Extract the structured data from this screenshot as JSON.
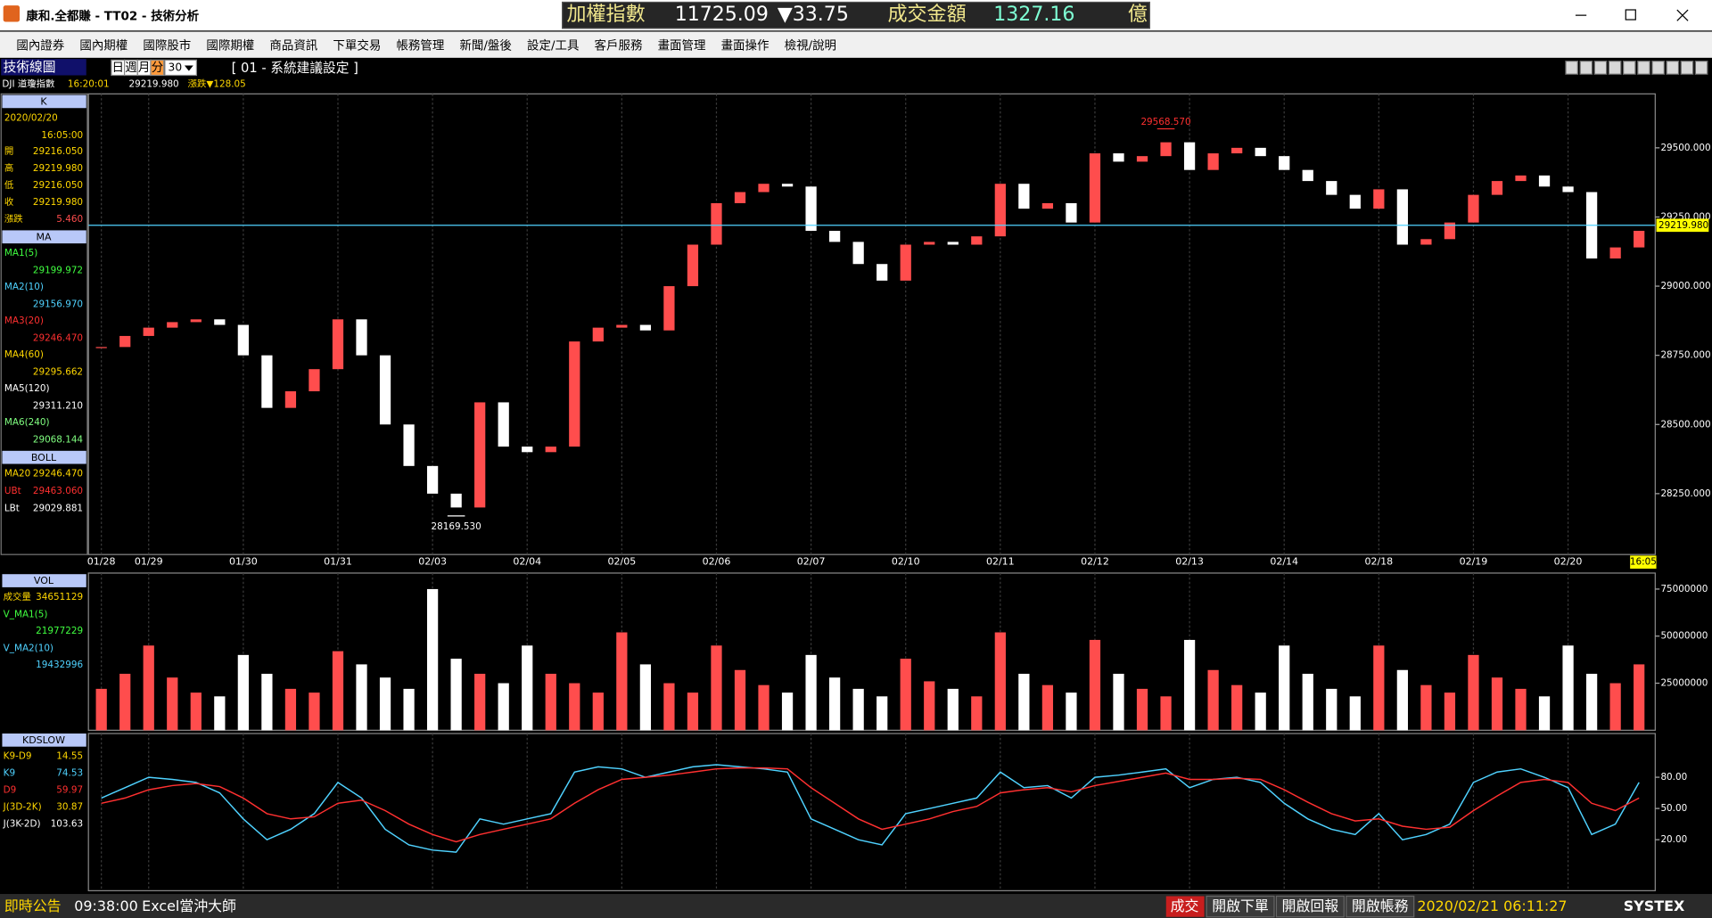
{
  "window": {
    "title": "康和.全都賺 - TT02 - 技術分析",
    "ticker": {
      "name": "加權指數",
      "value": "11725.09",
      "change": "▼33.75",
      "amount_label": "成交金額",
      "amount": "1327.16",
      "unit": "億"
    }
  },
  "menu": [
    "國內證券",
    "國內期權",
    "國際股市",
    "國際期權",
    "商品資訊",
    "下單交易",
    "帳務管理",
    "新聞/盤後",
    "設定/工具",
    "客戶服務",
    "畫面管理",
    "畫面操作",
    "檢視/說明"
  ],
  "toolbar": {
    "label": "技術線圖",
    "periods": [
      "日",
      "週",
      "月",
      "分"
    ],
    "interval": "30",
    "setting": "[ 01 - 系統建議設定 ]"
  },
  "info": {
    "symbol": "DJI 道瓊指數",
    "time": "16:20:01",
    "price": "29219.980",
    "change": "漲跌▼128.05"
  },
  "side_panel": {
    "k": {
      "header": "K",
      "date": "2020/02/20",
      "time": "16:05:00",
      "rows": [
        {
          "label": "開",
          "value": "29216.050"
        },
        {
          "label": "高",
          "value": "29219.980"
        },
        {
          "label": "低",
          "value": "29216.050"
        },
        {
          "label": "收",
          "value": "29219.980"
        },
        {
          "label": "漲跌",
          "value": "5.460"
        }
      ]
    },
    "ma": {
      "header": "MA",
      "rows": [
        {
          "label": "MA1(5)",
          "value": "29199.972"
        },
        {
          "label": "MA2(10)",
          "value": "29156.970"
        },
        {
          "label": "MA3(20)",
          "value": "29246.470"
        },
        {
          "label": "MA4(60)",
          "value": "29295.662"
        },
        {
          "label": "MA5(120)",
          "value": "29311.210"
        },
        {
          "label": "MA6(240)",
          "value": "29068.144"
        }
      ]
    },
    "boll": {
      "header": "BOLL",
      "rows": [
        {
          "label": "MA20",
          "value": "29246.470"
        },
        {
          "label": "UBt",
          "value": "29463.060"
        },
        {
          "label": "LBt",
          "value": "29029.881"
        }
      ]
    }
  },
  "chart_data": [
    {
      "type": "candlestick",
      "categories": [
        "01/28",
        null,
        "01/29",
        null,
        null,
        null,
        "01/30",
        null,
        null,
        null,
        "01/31",
        null,
        null,
        null,
        "02/03",
        null,
        null,
        null,
        "02/04",
        null,
        null,
        null,
        "02/05",
        null,
        null,
        null,
        "02/06",
        null,
        null,
        null,
        "02/07",
        null,
        null,
        null,
        "02/10",
        null,
        null,
        null,
        "02/11",
        null,
        null,
        null,
        "02/12",
        null,
        null,
        null,
        "02/13",
        null,
        null,
        null,
        "02/14",
        null,
        null,
        null,
        "02/18",
        null,
        null,
        null,
        "02/19",
        null,
        null,
        null,
        "02/20",
        null,
        null,
        null
      ],
      "close": [
        28780,
        28820,
        28850,
        28870,
        28880,
        28860,
        28750,
        28560,
        28620,
        28700,
        28880,
        28750,
        28500,
        28350,
        28250,
        28200,
        28580,
        28420,
        28400,
        28420,
        28800,
        28850,
        28860,
        28840,
        29000,
        29150,
        29300,
        29340,
        29370,
        29360,
        29200,
        29160,
        29080,
        29020,
        29150,
        29160,
        29150,
        29180,
        29370,
        29280,
        29300,
        29230,
        29480,
        29450,
        29470,
        29520,
        29420,
        29480,
        29500,
        29470,
        29420,
        29380,
        29330,
        29280,
        29350,
        29150,
        29170,
        29230,
        29330,
        29380,
        29400,
        29360,
        29340,
        29100,
        29140,
        29200
      ],
      "up_color": "#ff4d4d",
      "down_color": "#ffffff",
      "ylim": [
        28030,
        29695
      ],
      "yticks": [
        {
          "value": 28250,
          "label": "28250.000"
        },
        {
          "value": 28500,
          "label": "28500.000"
        },
        {
          "value": 28750,
          "label": "28750.000"
        },
        {
          "value": 29000,
          "label": "29000.000"
        },
        {
          "value": 29250,
          "label": "29250.000"
        },
        {
          "value": 29500,
          "label": "29500.000"
        }
      ],
      "high_label": {
        "value": 29568.57,
        "label": "29568.570"
      },
      "low_label": {
        "value": 28169.53,
        "label": "28169.530"
      },
      "last": {
        "value": 29219.98,
        "label": "29219.980"
      },
      "time_label": "16:05",
      "grid": true
    },
    {
      "type": "bar",
      "title": "VOL",
      "legend": [
        {
          "label": "成交量",
          "value": "34651129"
        },
        {
          "label": "V_MA1(5)",
          "value": "21977229"
        },
        {
          "label": "V_MA2(10)",
          "value": "19432996"
        }
      ],
      "values": [
        22000000,
        30000000,
        45000000,
        28000000,
        20000000,
        18000000,
        40000000,
        30000000,
        22000000,
        20000000,
        42000000,
        35000000,
        28000000,
        22000000,
        75000000,
        38000000,
        30000000,
        25000000,
        45000000,
        30000000,
        25000000,
        20000000,
        52000000,
        35000000,
        25000000,
        20000000,
        45000000,
        32000000,
        24000000,
        20000000,
        40000000,
        28000000,
        22000000,
        18000000,
        38000000,
        26000000,
        22000000,
        18000000,
        52000000,
        30000000,
        24000000,
        20000000,
        48000000,
        30000000,
        22000000,
        18000000,
        48000000,
        32000000,
        24000000,
        20000000,
        45000000,
        30000000,
        22000000,
        18000000,
        45000000,
        32000000,
        24000000,
        20000000,
        40000000,
        28000000,
        22000000,
        18000000,
        45000000,
        30000000,
        25000000,
        35000000
      ],
      "ylim": [
        0,
        83500000
      ],
      "yticks": [
        25000000,
        50000000,
        75000000
      ]
    },
    {
      "type": "line",
      "title": "KDSLOW",
      "legend": [
        {
          "label": "K9-D9",
          "value": "14.55"
        },
        {
          "label": "K9",
          "value": "74.53"
        },
        {
          "label": "D9",
          "value": "59.97"
        },
        {
          "label": "J(3D-2K)",
          "value": "30.87"
        },
        {
          "label": "J(3K-2D)",
          "value": "103.63"
        }
      ],
      "series": [
        {
          "color": "#4fd2ff",
          "values": [
            60,
            70,
            80,
            78,
            75,
            65,
            40,
            20,
            30,
            45,
            75,
            60,
            30,
            15,
            10,
            8,
            40,
            35,
            40,
            45,
            85,
            90,
            88,
            80,
            85,
            90,
            92,
            90,
            88,
            85,
            40,
            30,
            20,
            15,
            45,
            50,
            55,
            60,
            85,
            70,
            72,
            60,
            80,
            82,
            85,
            88,
            70,
            78,
            80,
            75,
            55,
            40,
            30,
            25,
            45,
            20,
            25,
            35,
            75,
            85,
            88,
            80,
            70,
            25,
            35,
            75
          ]
        },
        {
          "color": "#ff3030",
          "values": [
            55,
            60,
            68,
            72,
            74,
            71,
            60,
            45,
            40,
            42,
            55,
            58,
            48,
            35,
            25,
            18,
            25,
            30,
            35,
            40,
            55,
            68,
            78,
            80,
            82,
            85,
            88,
            89,
            89,
            88,
            70,
            55,
            40,
            30,
            35,
            40,
            47,
            52,
            65,
            68,
            70,
            66,
            72,
            76,
            80,
            84,
            78,
            78,
            79,
            78,
            68,
            56,
            45,
            38,
            40,
            33,
            30,
            32,
            48,
            62,
            75,
            78,
            75,
            55,
            48,
            60
          ]
        }
      ],
      "ylim": [
        -29,
        122
      ],
      "yticks": [
        {
          "value": 20,
          "label": "20.00"
        },
        {
          "value": 50,
          "label": "50.00"
        },
        {
          "value": 80,
          "label": "80.00"
        }
      ]
    }
  ],
  "status_bar": {
    "notice": "即時公告",
    "notice_time": "09:38:00",
    "notice_text": "Excel當沖大師",
    "trade": "成交",
    "buttons": [
      "開啟下單",
      "開啟回報",
      "開啟帳務"
    ],
    "clock": "2020/02/21 06:11:27",
    "brand": "SYSTEX"
  }
}
